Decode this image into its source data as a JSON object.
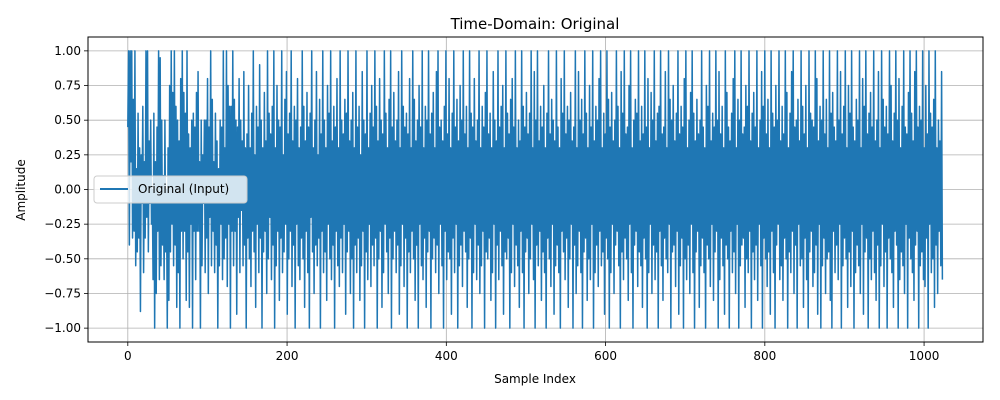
{
  "chart_data": {
    "type": "line",
    "title": "Time-Domain: Original",
    "xlabel": "Sample Index",
    "ylabel": "Amplitude",
    "xlim": [
      -50,
      1074
    ],
    "ylim": [
      -1.1,
      1.1
    ],
    "xticks": [
      0,
      200,
      400,
      600,
      800,
      1000
    ],
    "xtick_labels": [
      "0",
      "200",
      "400",
      "600",
      "800",
      "1000"
    ],
    "yticks": [
      1.0,
      0.75,
      0.5,
      0.25,
      0.0,
      -0.25,
      -0.5,
      -0.75,
      -1.0
    ],
    "ytick_labels": [
      "1.00",
      "0.75",
      "0.50",
      "0.25",
      "0.00",
      "−0.25",
      "−0.50",
      "−0.75",
      "−1.00"
    ],
    "grid": true,
    "legend_position": "center-left",
    "n_samples": 1024,
    "series": [
      {
        "name": "Original (Input)",
        "color": "#1f77b4",
        "values": [
          0.45,
          1.0,
          -0.4,
          1.0,
          0.2,
          1.0,
          -0.35,
          0.65,
          -0.3,
          1.0,
          -0.55,
          0.15,
          -0.45,
          0.55,
          -0.35,
          0.3,
          -0.88,
          0.25,
          -0.1,
          0.6,
          -0.6,
          0.2,
          -0.35,
          1.0,
          -0.2,
          1.0,
          -0.45,
          0.35,
          -0.1,
          0.5,
          -0.25,
          0.0,
          -0.65,
          0.55,
          -1.0,
          0.2,
          -0.75,
          0.45,
          -0.3,
          1.0,
          -0.65,
          0.95,
          -0.55,
          0.5,
          -0.4,
          0.1,
          -0.65,
          0.5,
          -0.45,
          0.0,
          -1.0,
          0.3,
          -0.8,
          0.75,
          -0.45,
          1.0,
          -0.25,
          0.7,
          -0.55,
          1.0,
          -0.4,
          0.6,
          -0.85,
          0.5,
          -0.6,
          0.35,
          -1.0,
          0.8,
          -0.3,
          1.0,
          -0.5,
          0.7,
          -0.3,
          0.55,
          -0.8,
          1.0,
          -0.45,
          0.4,
          -0.85,
          0.3,
          -0.25,
          0.5,
          -1.0,
          0.55,
          -0.3,
          0.45,
          -0.65,
          0.7,
          -0.3,
          0.85,
          -0.3,
          0.2,
          -1.0,
          0.5,
          -0.55,
          0.25,
          -0.1,
          0.5,
          -0.6,
          0.5,
          -0.35,
          0.8,
          -0.75,
          0.45,
          -0.2,
          1.0,
          -0.55,
          0.65,
          -0.3,
          0.2,
          -0.6,
          0.55,
          -0.4,
          0.35,
          -1.0,
          0.15,
          -0.55,
          0.5,
          -0.25,
          0.45,
          -0.65,
          1.0,
          -0.5,
          0.3,
          -0.35,
          1.0,
          -0.7,
          0.75,
          -0.25,
          0.6,
          -1.0,
          0.6,
          -0.3,
          1.0,
          -0.55,
          0.65,
          -0.3,
          0.5,
          -0.9,
          0.45,
          -0.2,
          0.8,
          -0.6,
          0.5,
          -0.15,
          0.35,
          -0.55,
          0.85,
          -0.4,
          0.3,
          -1.0,
          0.4,
          -0.35,
          0.75,
          -0.5,
          0.3,
          -0.7,
          0.55,
          -0.3,
          1.0,
          -0.45,
          0.25,
          -0.85,
          0.6,
          -0.25,
          0.45,
          -0.6,
          0.9,
          -0.35,
          0.5,
          -1.0,
          0.3,
          -0.45,
          0.7,
          -0.3,
          0.35,
          -0.75,
          1.0,
          -0.5,
          0.55,
          -0.2,
          0.4,
          -0.65,
          0.6,
          -0.4,
          1.0,
          -1.0,
          0.3,
          -0.55,
          0.75,
          -0.3,
          0.5,
          -0.8,
          0.45,
          -0.35,
          1.0,
          -0.6,
          0.25,
          -0.45,
          0.65,
          -0.25,
          0.85,
          -0.9,
          0.4,
          -0.5,
          0.55,
          -0.3,
          1.0,
          -0.7,
          0.35,
          -0.4,
          0.6,
          -1.0,
          0.5,
          -0.25,
          0.8,
          -0.55,
          0.3,
          -0.65,
          0.45,
          -0.35,
          1.0,
          -0.5,
          0.6,
          -0.85,
          0.35,
          -0.3,
          0.7,
          -0.6,
          0.45,
          -1.0,
          0.55,
          -0.2,
          1.0,
          -0.45,
          0.3,
          -0.75,
          0.5,
          -0.4,
          0.85,
          -0.55,
          0.25,
          -0.35,
          0.65,
          -1.0,
          0.4,
          -0.3,
          1.0,
          -0.6,
          0.5,
          -0.45,
          0.3,
          -0.8,
          0.75,
          -0.25,
          0.55,
          -0.5,
          1.0,
          -0.65,
          0.35,
          -0.4,
          0.6,
          -1.0,
          0.45,
          -0.3,
          0.8,
          -0.55,
          0.3,
          -0.7,
          1.0,
          -0.35,
          0.5,
          -0.6,
          0.4,
          -0.25,
          0.65,
          -0.9,
          0.55,
          -0.45,
          1.0,
          -0.3,
          0.35,
          -0.75,
          0.5,
          -0.5,
          0.7,
          -1.0,
          0.3,
          -0.4,
          1.0,
          -0.6,
          0.45,
          -0.35,
          0.6,
          -0.8,
          0.25,
          -0.55,
          0.85,
          -0.3,
          0.5,
          -1.0,
          0.4,
          -0.45,
          1.0,
          -0.65,
          0.3,
          -0.25,
          0.55,
          -0.7,
          0.75,
          -0.4,
          0.45,
          -0.55,
          1.0,
          -0.35,
          0.6,
          -1.0,
          0.35,
          -0.5,
          0.8,
          -0.3,
          0.5,
          -0.85,
          0.4,
          -0.6,
          1.0,
          -0.25,
          0.55,
          -0.45,
          0.3,
          -0.75,
          0.65,
          -0.35,
          1.0,
          -1.0,
          0.45,
          -0.5,
          0.7,
          -0.3,
          0.35,
          -0.6,
          0.5,
          -0.4,
          0.85,
          -0.9,
          0.3,
          -0.55,
          1.0,
          -0.25,
          0.6,
          -0.7,
          0.45,
          -0.35,
          0.55,
          -1.0,
          0.4,
          -0.45,
          0.8,
          -0.6,
          0.3,
          -0.3,
          1.0,
          -0.5,
          0.65,
          -0.8,
          0.35,
          -0.4,
          0.5,
          -1.0,
          0.75,
          -0.25,
          0.45,
          -0.55,
          1.0,
          -0.65,
          0.3,
          -0.35,
          0.6,
          -0.85,
          0.5,
          -0.45,
          1.0,
          -0.3,
          0.4,
          -1.0,
          0.55,
          -0.5,
          0.7,
          -0.35,
          0.3,
          -0.6,
          0.85,
          -0.4,
          1.0,
          -0.75,
          0.45,
          -0.25,
          0.5,
          -0.55,
          0.35,
          -1.0,
          0.6,
          -0.3,
          1.0,
          -0.65,
          0.4,
          -0.45,
          0.8,
          -0.5,
          0.3,
          -0.9,
          0.55,
          -0.35,
          1.0,
          -0.6,
          0.45,
          -0.25,
          0.65,
          -1.0,
          0.35,
          -0.55,
          0.75,
          -0.4,
          0.5,
          -0.7,
          1.0,
          -0.3,
          0.4,
          -0.45,
          0.6,
          -0.85,
          0.3,
          -0.5,
          1.0,
          -0.35,
          0.55,
          -1.0,
          0.45,
          -0.6,
          0.8,
          -0.25,
          0.35,
          -0.65,
          0.5,
          -0.4,
          1.0,
          -0.75,
          0.3,
          -0.55,
          0.6,
          -0.3,
          0.45,
          -1.0,
          0.7,
          -0.45,
          1.0,
          -0.5,
          0.4,
          -0.35,
          0.55,
          -0.8,
          0.3,
          -0.6,
          0.85,
          -0.25,
          0.5,
          -1.0,
          0.35,
          -0.4,
          1.0,
          -0.65,
          0.45,
          -0.3,
          0.6,
          -0.55,
          0.75,
          -0.9,
          0.3,
          -0.45,
          1.0,
          -0.5,
          0.55,
          -0.35,
          0.4,
          -1.0,
          0.65,
          -0.6,
          0.8,
          -0.25,
          0.45,
          -0.7,
          1.0,
          -0.4,
          0.3,
          -0.55,
          0.5,
          -0.85,
          0.35,
          -0.3,
          1.0,
          -0.6,
          0.6,
          -1.0,
          0.45,
          -0.45,
          0.7,
          -0.35,
          0.4,
          -0.75,
          0.55,
          -0.5,
          1.0,
          -0.25,
          0.3,
          -0.65,
          0.85,
          -1.0,
          0.5,
          -0.4,
          1.0,
          -0.55,
          0.35,
          -0.3,
          0.6,
          -0.8,
          0.45,
          -0.45,
          0.75,
          -0.6,
          0.3,
          -1.0,
          0.55,
          -0.35,
          1.0,
          -0.5,
          0.4,
          -0.7,
          0.65,
          -0.25,
          0.5,
          -0.9,
          0.35,
          -0.55,
          1.0,
          -0.4,
          0.45,
          -0.6,
          0.3,
          -1.0,
          0.8,
          -0.3,
          0.55,
          -0.45,
          1.0,
          -0.65,
          0.4,
          -0.35,
          0.6,
          -0.85,
          0.5,
          -0.5,
          0.7,
          -0.25,
          0.35,
          -1.0,
          0.45,
          -0.4,
          1.0,
          -0.75,
          0.3,
          -0.55,
          0.85,
          -0.3,
          0.5,
          -0.6,
          0.65,
          -1.0,
          0.4,
          -0.45,
          1.0,
          -0.35,
          0.55,
          -0.8,
          0.3,
          -0.5,
          0.75,
          -0.65,
          0.45,
          -0.25,
          1.0,
          -1.0,
          0.35,
          -0.6,
          0.6,
          -0.4,
          0.5,
          -0.7,
          0.8,
          -0.3,
          1.0,
          -0.55,
          0.3,
          -0.45,
          0.55,
          -0.9,
          0.4,
          -0.35,
          1.0,
          -0.5,
          0.65,
          -1.0,
          0.45,
          -0.6,
          0.7,
          -0.25,
          0.35,
          -0.75,
          0.5,
          -0.4,
          1.0,
          -0.3,
          0.6,
          -0.55,
          0.3,
          -1.0,
          0.85,
          -0.45,
          0.55,
          -0.65,
          1.0,
          -0.35,
          0.4,
          -0.5,
          0.45,
          -0.8,
          0.75,
          -0.25,
          1.0,
          -0.6,
          0.3,
          -1.0,
          0.5,
          -0.4,
          0.65,
          -0.3,
          0.55,
          -0.7,
          1.0,
          -0.45,
          0.35,
          -0.55,
          0.6,
          -0.85,
          0.4,
          -0.35,
          1.0,
          -0.5,
          0.45,
          -1.0,
          0.8,
          -0.6,
          0.3,
          -0.25,
          0.7,
          -0.75,
          0.5,
          -0.4,
          1.0,
          -0.65,
          0.35,
          -0.45,
          0.55,
          -1.0,
          0.6,
          -0.3,
          1.0,
          -0.55,
          0.4,
          -0.8,
          0.45,
          -0.35,
          0.85,
          -0.5,
          0.3,
          -0.6,
          1.0,
          -0.25,
          0.65,
          -1.0,
          0.5,
          -0.45,
          0.75,
          -0.4,
          0.35,
          -0.7,
          0.55,
          -0.3,
          1.0,
          -0.9,
          0.4,
          -0.55,
          0.6,
          -0.35,
          0.45,
          -1.0,
          0.8,
          -0.5,
          1.0,
          -0.65,
          0.3,
          -0.4,
          0.5,
          -0.75,
          0.7,
          -0.25,
          1.0,
          -0.6,
          0.55,
          -1.0,
          0.35,
          -0.45,
          0.65,
          -0.3,
          0.4,
          -0.85,
          0.5,
          -0.55,
          1.0,
          -0.35,
          0.45,
          -0.6,
          0.3,
          -1.0,
          0.75,
          -0.4,
          0.6,
          -0.5,
          1.0,
          -0.7,
          0.35,
          -0.25,
          0.55,
          -0.8,
          0.45,
          -0.45,
          1.0,
          -0.3,
          0.5,
          -1.0,
          0.85,
          -0.65,
          0.4,
          -0.35,
          0.6,
          -0.55,
          0.3,
          -0.9,
          1.0,
          -0.4,
          0.7,
          -0.5,
          0.45,
          -1.0,
          0.35,
          -0.3,
          0.55,
          -0.6,
          0.8,
          -0.45,
          1.0,
          -0.75,
          0.3,
          -0.25,
          0.65,
          -1.0,
          0.5,
          -0.55,
          1.0,
          -0.4,
          0.4,
          -0.35,
          0.45,
          -0.85,
          0.75,
          -0.5,
          0.6,
          -0.6,
          1.0,
          -0.3,
          0.35,
          -1.0,
          0.55,
          -0.45,
          0.7,
          -0.65,
          0.45,
          -0.4,
          1.0,
          -0.8,
          0.3,
          -0.25,
          0.5,
          -0.55,
          0.85,
          -1.0,
          0.6,
          -0.35,
          1.0,
          -0.5,
          0.4,
          -0.7,
          0.65,
          -0.45,
          0.3,
          -0.9,
          1.0,
          -0.3,
          0.55,
          -0.6,
          0.45,
          -1.0,
          0.75,
          -0.4,
          0.5,
          -0.25,
          1.0,
          -0.65,
          0.35,
          -0.55,
          0.6,
          -0.8,
          0.4,
          -0.35,
          1.0,
          -0.5,
          0.7,
          -1.0,
          0.3,
          -0.45,
          0.55,
          -0.6,
          0.85,
          -0.3,
          1.0,
          -0.75,
          0.45,
          -0.4,
          0.5,
          -1.0,
          0.65,
          -0.25,
          0.35,
          -0.55,
          1.0,
          -0.5,
          0.6,
          -0.85,
          0.4,
          -0.35,
          0.75,
          -0.65,
          0.3,
          -1.0,
          1.0,
          -0.45,
          0.55,
          -0.3,
          0.5,
          -0.7,
          0.45,
          -0.6,
          1.0,
          -0.4,
          0.8,
          -0.9,
          0.35,
          -0.25,
          0.6,
          -1.0,
          0.5,
          -0.55,
          1.0,
          -0.35,
          0.4,
          -0.75,
          0.65,
          -0.5,
          0.3,
          -0.45,
          1.0,
          -0.8,
          0.55,
          -1.0,
          0.7,
          -0.3,
          0.45,
          -0.6,
          0.35,
          -0.4,
          1.0,
          -0.65,
          0.5,
          -0.25,
          0.85,
          -1.0,
          0.4,
          -0.55,
          0.6,
          -0.35,
          1.0,
          -0.5,
          0.3,
          -0.85,
          0.75,
          -0.45,
          0.55,
          -0.7,
          1.0,
          -0.3,
          0.45,
          -1.0,
          0.35,
          -0.6,
          0.65,
          -0.4,
          0.5,
          -0.55,
          1.0,
          -0.75,
          0.3,
          -0.25,
          0.8,
          -0.9,
          0.6,
          -0.45,
          1.0,
          -0.35,
          0.4,
          -1.0,
          0.55,
          -0.5,
          0.7,
          -0.65,
          0.45,
          -0.3,
          1.0,
          -0.6,
          0.35,
          -0.8,
          0.5,
          -0.4,
          0.85,
          -1.0,
          0.3,
          -0.55,
          1.0,
          -0.25,
          0.65,
          -0.7,
          0.45,
          -0.45,
          0.6,
          -1.0,
          0.4,
          -0.35,
          1.0,
          -0.5,
          0.75,
          -0.6,
          0.35,
          -0.85,
          0.55,
          -0.3,
          1.0,
          -0.4,
          0.5,
          -1.0,
          0.8,
          -0.65,
          0.3,
          -0.45,
          0.6,
          -0.55,
          1.0,
          -0.75,
          0.45,
          -0.25,
          0.4,
          -1.0,
          0.7,
          -0.35,
          1.0,
          -0.5,
          0.55,
          -0.6,
          0.35,
          -0.8,
          0.85,
          -0.4,
          1.0,
          -0.3,
          0.45,
          -1.0,
          0.6,
          -0.55,
          0.5,
          -0.45,
          1.0,
          -0.65,
          0.3,
          -0.7,
          0.75,
          -0.35,
          0.4,
          -1.0,
          1.0,
          -0.25,
          0.55,
          -0.6,
          0.45,
          -0.5,
          0.65,
          -0.85,
          1.0,
          -0.4,
          0.3,
          -0.75,
          0.5,
          -0.3,
          0.35,
          -0.55,
          0.85,
          -0.65
        ]
      }
    ]
  }
}
